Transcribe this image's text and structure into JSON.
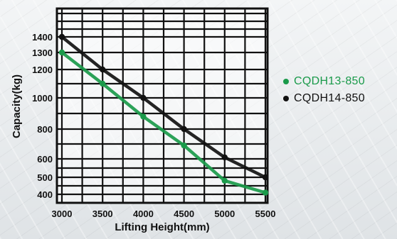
{
  "chart_data": {
    "type": "line",
    "xlabel": "Lifting Height(mm)",
    "ylabel": "Capacity(kg)",
    "x_ticks": [
      3000,
      3500,
      4000,
      4500,
      5000,
      5500
    ],
    "y_ticks": [
      400,
      500,
      600,
      800,
      1000,
      1200,
      1300,
      1400
    ],
    "xlim": [
      3000,
      5500
    ],
    "grid": true,
    "legend_position": "right",
    "series": [
      {
        "name": "CQDH13-850",
        "color": "#1a9a4a",
        "x": [
          3000,
          3500,
          4000,
          4500,
          5000,
          5500
        ],
        "values": [
          1300,
          1100,
          880,
          690,
          480,
          410
        ]
      },
      {
        "name": "CQDH14-850",
        "color": "#111111",
        "x": [
          3000,
          3500,
          4000,
          4500,
          5000,
          5500
        ],
        "values": [
          1400,
          1200,
          1000,
          800,
          610,
          500
        ]
      }
    ]
  }
}
